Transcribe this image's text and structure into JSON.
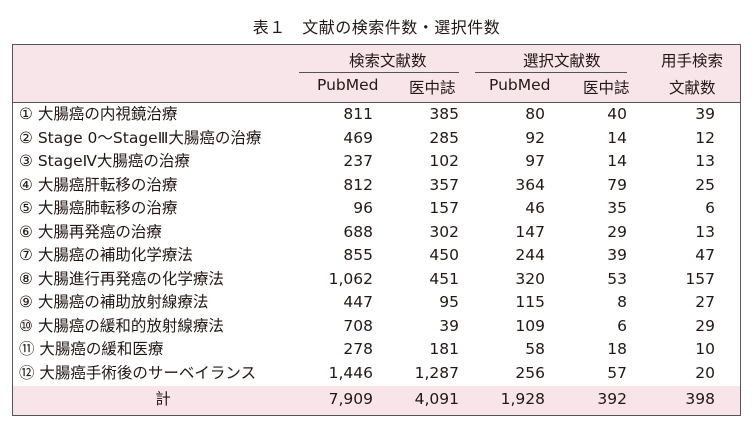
{
  "caption": "表１　文献の検索件数・選択件数",
  "header": {
    "group1": "検索文献数",
    "group2": "選択文献数",
    "group3_line1": "用手検索",
    "group3_line2": "文献数",
    "sub": [
      "PubMed",
      "医中誌",
      "PubMed",
      "医中誌"
    ]
  },
  "rows": [
    {
      "label": "① 大腸癌の内視鏡治療",
      "v": [
        "811",
        "385",
        "80",
        "40",
        "39"
      ]
    },
    {
      "label": "② Stage 0〜StageⅢ大腸癌の治療",
      "v": [
        "469",
        "285",
        "92",
        "14",
        "12"
      ]
    },
    {
      "label": "③ StageⅣ大腸癌の治療",
      "v": [
        "237",
        "102",
        "97",
        "14",
        "13"
      ]
    },
    {
      "label": "④ 大腸癌肝転移の治療",
      "v": [
        "812",
        "357",
        "364",
        "79",
        "25"
      ]
    },
    {
      "label": "⑤ 大腸癌肺転移の治療",
      "v": [
        "96",
        "157",
        "46",
        "35",
        "6"
      ]
    },
    {
      "label": "⑥ 大腸再発癌の治療",
      "v": [
        "688",
        "302",
        "147",
        "29",
        "13"
      ]
    },
    {
      "label": "⑦ 大腸癌の補助化学療法",
      "v": [
        "855",
        "450",
        "244",
        "39",
        "47"
      ]
    },
    {
      "label": "⑧ 大腸進行再発癌の化学療法",
      "v": [
        "1,062",
        "451",
        "320",
        "53",
        "157"
      ]
    },
    {
      "label": "⑨ 大腸癌の補助放射線療法",
      "v": [
        "447",
        "95",
        "115",
        "8",
        "27"
      ]
    },
    {
      "label": "⑩ 大腸癌の緩和的放射線療法",
      "v": [
        "708",
        "39",
        "109",
        "6",
        "29"
      ]
    },
    {
      "label": "⑪ 大腸癌の緩和医療",
      "v": [
        "278",
        "181",
        "58",
        "18",
        "10"
      ]
    },
    {
      "label": "⑫ 大腸癌手術後のサーベイランス",
      "v": [
        "1,446",
        "1,287",
        "256",
        "57",
        "20"
      ]
    }
  ],
  "total": {
    "label": "計",
    "v": [
      "7,909",
      "4,091",
      "1,928",
      "392",
      "398"
    ]
  }
}
